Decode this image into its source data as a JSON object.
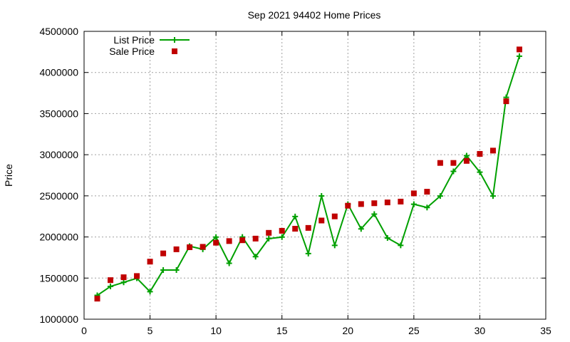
{
  "chart_data": {
    "type": "line",
    "title": "Sep 2021 94402 Home Prices",
    "xlabel": "",
    "ylabel": "Price",
    "xlim": [
      0,
      35
    ],
    "ylim": [
      1000000,
      4500000
    ],
    "x_ticks": [
      0,
      5,
      10,
      15,
      20,
      25,
      30,
      35
    ],
    "y_ticks": [
      1000000,
      1500000,
      2000000,
      2500000,
      3000000,
      3500000,
      4000000,
      4500000
    ],
    "grid": true,
    "legend_position": "top-left",
    "series": [
      {
        "name": "List Price",
        "style": "line-with-plus",
        "color": "#00a000",
        "x": [
          1,
          2,
          3,
          4,
          5,
          6,
          7,
          8,
          9,
          10,
          11,
          12,
          13,
          14,
          15,
          16,
          17,
          18,
          19,
          20,
          21,
          22,
          23,
          24,
          25,
          26,
          27,
          28,
          29,
          30,
          31,
          32,
          33
        ],
        "values": [
          1290000,
          1398000,
          1448000,
          1498000,
          1335000,
          1598000,
          1598000,
          1888000,
          1850000,
          1998000,
          1680000,
          1999000,
          1760000,
          1980000,
          1998000,
          2249000,
          1798000,
          2499000,
          1898000,
          2398000,
          2098000,
          2278000,
          1988000,
          1898000,
          2398000,
          2358000,
          2498000,
          2798000,
          2988000,
          2788000,
          2498000,
          3698000,
          4198000
        ]
      },
      {
        "name": "Sale Price",
        "style": "square-points",
        "color": "#c00000",
        "x": [
          1,
          2,
          3,
          4,
          5,
          6,
          7,
          8,
          9,
          10,
          11,
          12,
          13,
          14,
          15,
          16,
          17,
          18,
          19,
          20,
          21,
          22,
          23,
          24,
          25,
          26,
          27,
          28,
          29,
          30,
          31,
          32,
          33
        ],
        "values": [
          1250000,
          1475000,
          1510000,
          1525000,
          1700000,
          1800000,
          1850000,
          1875000,
          1880000,
          1930000,
          1950000,
          1960000,
          1980000,
          2050000,
          2075000,
          2100000,
          2110000,
          2200000,
          2250000,
          2380000,
          2400000,
          2410000,
          2420000,
          2430000,
          2530000,
          2550000,
          2900000,
          2900000,
          2925000,
          3010000,
          3050000,
          3650000,
          4280000
        ]
      }
    ]
  }
}
